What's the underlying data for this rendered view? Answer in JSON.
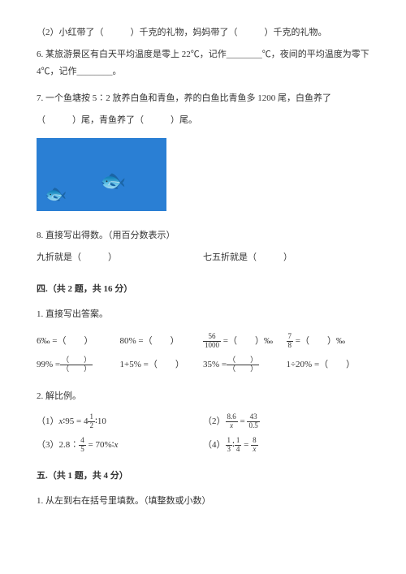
{
  "q2": "（2）小红带了（　　　）千克的礼物，妈妈带了（　　　）千克的礼物。",
  "q6": "6. 某旅游景区有白天平均温度是零上 22℃，记作________℃，夜间的平均温度为零下 4℃，记作________。",
  "q7a": "7. 一个鱼塘按 5∶2 放养白鱼和青鱼，养的白鱼比青鱼多 1200 尾，白鱼养了",
  "q7b": "（　　　）尾，青鱼养了（　　　）尾。",
  "q8": "8. 直接写出得数。（用百分数表示）",
  "q8row": {
    "left": "九折就是（　　　）",
    "right": "七五折就是（　　　）"
  },
  "section4": "四.（共 2 题，共 16 分）",
  "s4q1": "1. 直接写出答案。",
  "row1": {
    "c1": "6‰ =（　　）",
    "c2": "80% =（　　）",
    "c3_num": "56",
    "c3_den": "1000",
    "c3_tail": " =（　　）‰",
    "c4_num": "7",
    "c4_den": "8",
    "c4_tail": " =（　　）‰"
  },
  "row2": {
    "c1": "99% =",
    "c2": "1+5% =（　　）",
    "c3": "35% =",
    "c4": "1÷20% =（　　）"
  },
  "s4q2": "2. 解比例。",
  "prop": {
    "p1a": "（1）",
    "p1x": "x",
    "p1b": "∶95 = 4",
    "p1n": "1",
    "p1d": "2",
    "p1c": "∶10",
    "p2a": "（2）",
    "p2n1": "8.6",
    "p2d1": "x",
    "p2eq": " = ",
    "p2n2": "43",
    "p2d2": "0.5",
    "p3a": "（3）2.8∶",
    "p3n": "4",
    "p3d": "5",
    "p3b": " = 70%∶",
    "p3x": "x",
    "p4a": "（4）",
    "p4n1": "1",
    "p4d1": "3",
    "p4m": "∶",
    "p4n2": "1",
    "p4d2": "4",
    "p4eq": " = ",
    "p4n3": "8",
    "p4d3": "x"
  },
  "section5": "五.（共 1 题，共 4 分）",
  "s5q1": "1. 从左到右在括号里填数。（填整数或小数）",
  "bracket_n": "（　　）",
  "bracket_d": "（　　）"
}
